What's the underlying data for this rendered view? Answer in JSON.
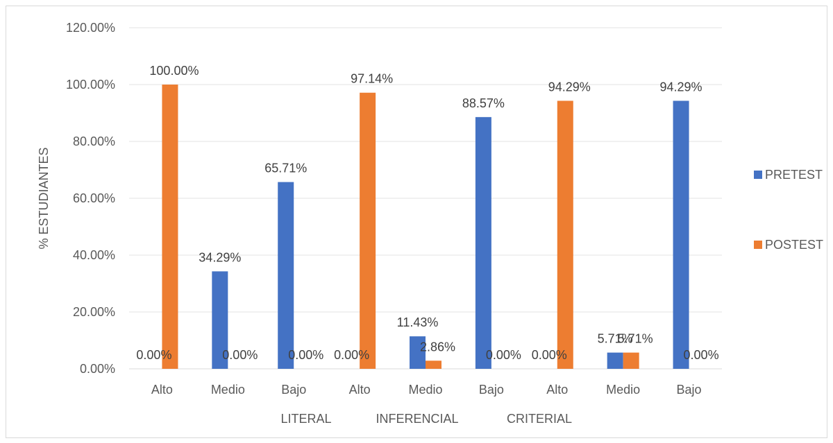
{
  "chart_data": {
    "type": "bar",
    "categories": [
      "Alto",
      "Medio",
      "Bajo",
      "Alto",
      "Medio",
      "Bajo",
      "Alto",
      "Medio",
      "Bajo"
    ],
    "groups": [
      "LITERAL",
      "INFERENCIAL",
      "CRITERIAL"
    ],
    "series": [
      {
        "name": "PRETEST",
        "color": "#4472c4",
        "values": [
          0,
          34.29,
          65.71,
          0,
          11.43,
          88.57,
          0,
          5.71,
          94.29
        ],
        "labels": [
          "0.00%",
          "34.29%",
          "65.71%",
          "0.00%",
          "11.43%",
          "88.57%",
          "0.00%",
          "5.71%",
          "94.29%"
        ]
      },
      {
        "name": "POSTEST",
        "color": "#ed7d31",
        "values": [
          100,
          0,
          0,
          97.14,
          2.86,
          0,
          94.29,
          5.71,
          0
        ],
        "labels": [
          "100.00%",
          "0.00%",
          "0.00%",
          "97.14%",
          "2.86%",
          "0.00%",
          "94.29%",
          "5.71%",
          "0.00%"
        ]
      }
    ],
    "ylabel": "% ESTUDIANTES",
    "xlabel": "",
    "ylim": [
      0,
      120
    ],
    "yticks": [
      "0.00%",
      "20.00%",
      "40.00%",
      "60.00%",
      "80.00%",
      "100.00%",
      "120.00%"
    ],
    "grid": true,
    "legend_position": "right"
  }
}
